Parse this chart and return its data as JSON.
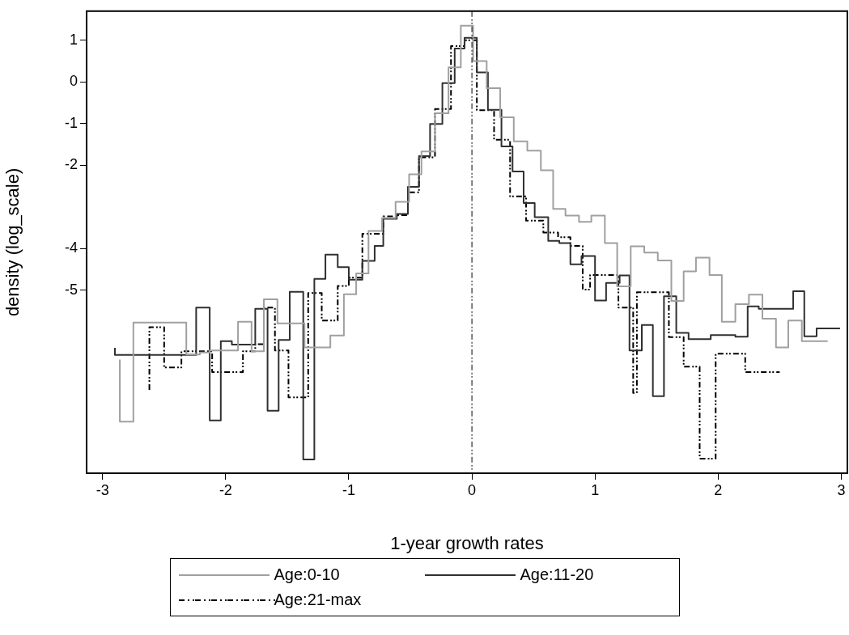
{
  "chart_data": {
    "type": "step",
    "xlabel": "1-year growth rates",
    "ylabel": "density (log_scale)",
    "xlim": [
      -3.13,
      3.05
    ],
    "xticks": [
      -3,
      -2,
      -1,
      0,
      1,
      2,
      3
    ],
    "ylim": [
      -9.4,
      1.7
    ],
    "yticks": [
      1,
      0,
      -1,
      -2,
      -4,
      -5
    ],
    "grid": false,
    "legend": "bottom",
    "ref_lines": [
      {
        "axis": "x",
        "value": 0,
        "label": null,
        "color": "#000000",
        "line_style": "dashed"
      }
    ],
    "series": [
      {
        "name": "Age:0-10",
        "color": "#a0a0a0",
        "line_style": "solid",
        "x": [
          -2.86,
          -2.75,
          -2.32,
          -2.21,
          -2.13,
          -1.9,
          -1.79,
          -1.69,
          -1.58,
          -1.36,
          -1.15,
          -1.04,
          -0.94,
          -0.84,
          -0.73,
          -0.62,
          -0.51,
          -0.41,
          -0.3,
          -0.19,
          -0.09,
          0.01,
          0.12,
          0.23,
          0.34,
          0.45,
          0.56,
          0.66,
          0.76,
          0.87,
          0.97,
          1.08,
          1.18,
          1.29,
          1.4,
          1.51,
          1.62,
          1.72,
          1.82,
          1.93,
          2.03,
          2.14,
          2.25,
          2.36,
          2.47,
          2.57,
          2.68,
          2.78,
          2.89
        ],
        "values": [
          -6.67,
          -8.16,
          -5.78,
          -6.55,
          -6.5,
          -6.45,
          -5.76,
          -6.47,
          -5.22,
          -5.8,
          -6.38,
          -6.09,
          -5.1,
          -4.6,
          -3.58,
          -3.27,
          -2.88,
          -2.22,
          -1.67,
          -0.75,
          0.35,
          1.35,
          0.5,
          -0.15,
          -0.85,
          -1.43,
          -1.65,
          -2.12,
          -3.05,
          -3.21,
          -3.36,
          -3.21,
          -3.87,
          -4.91,
          -3.95,
          -4.1,
          -4.29,
          -5.26,
          -4.55,
          -4.22,
          -4.64,
          -5.76,
          -5.34,
          -5.11,
          -5.69,
          -6.38,
          -5.73,
          -6.23,
          -6.23
        ]
      },
      {
        "name": "Age:11-20",
        "color": "#303030",
        "line_style": "solid",
        "x": [
          -2.9,
          -2.24,
          -2.13,
          -2.04,
          -1.95,
          -1.76,
          -1.66,
          -1.57,
          -1.48,
          -1.37,
          -1.28,
          -1.19,
          -1.09,
          -1.0,
          -0.89,
          -0.79,
          -0.72,
          -0.61,
          -0.52,
          -0.43,
          -0.34,
          -0.24,
          -0.14,
          -0.06,
          0.04,
          0.13,
          0.24,
          0.33,
          0.42,
          0.51,
          0.62,
          0.71,
          0.8,
          0.89,
          1.0,
          1.09,
          1.2,
          1.28,
          1.38,
          1.47,
          1.56,
          1.66,
          1.76,
          1.94,
          2.14,
          2.24,
          2.33,
          2.61,
          2.7,
          2.8,
          2.9,
          2.99
        ],
        "values": [
          -6.39,
          -6.56,
          -5.42,
          -8.13,
          -6.23,
          -6.31,
          -5.45,
          -7.9,
          -6.2,
          -5.04,
          -9.07,
          -4.73,
          -4.15,
          -4.45,
          -4.75,
          -4.3,
          -3.94,
          -3.29,
          -3.17,
          -2.52,
          -1.78,
          -1.01,
          -0.03,
          0.8,
          1.06,
          0.23,
          -0.67,
          -1.55,
          -2.15,
          -2.91,
          -3.25,
          -3.82,
          -3.87,
          -4.38,
          -4.18,
          -5.25,
          -4.83,
          -4.65,
          -6.45,
          -5.84,
          -7.55,
          -5.15,
          -6.03,
          -6.18,
          -6.08,
          -6.12,
          -5.39,
          -5.45,
          -5.03,
          -6.11,
          -5.92,
          -5.92
        ]
      },
      {
        "name": "Age:21-max",
        "color": "#000000",
        "line_style": "dashed",
        "x": [
          -2.62,
          -2.5,
          -2.36,
          -2.11,
          -1.86,
          -1.76,
          -1.69,
          -1.6,
          -1.49,
          -1.33,
          -1.22,
          -1.09,
          -1.0,
          -0.89,
          -0.72,
          -0.61,
          -0.52,
          -0.43,
          -0.3,
          -0.17,
          -0.06,
          0.04,
          0.18,
          0.31,
          0.44,
          0.58,
          0.7,
          0.8,
          0.9,
          0.96,
          1.19,
          1.31,
          1.34,
          1.6,
          1.72,
          1.85,
          1.98,
          2.22,
          2.36,
          2.5
        ],
        "values": [
          -7.4,
          -5.89,
          -6.86,
          -6.47,
          -6.97,
          -6.47,
          -6.3,
          -5.42,
          -6.45,
          -7.58,
          -5.07,
          -5.73,
          -4.9,
          -4.7,
          -3.65,
          -3.23,
          -3.2,
          -2.65,
          -1.81,
          -0.65,
          0.86,
          1.0,
          -0.68,
          -1.39,
          -2.75,
          -3.33,
          -3.62,
          -3.73,
          -3.94,
          -4.99,
          -4.64,
          -5.42,
          -7.47,
          -5.05,
          -6.13,
          -6.84,
          -9.05,
          -6.53,
          -6.97,
          -6.97
        ]
      }
    ]
  }
}
